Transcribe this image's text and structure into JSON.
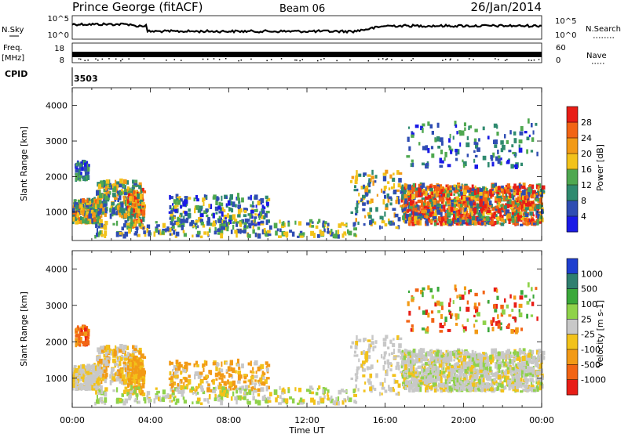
{
  "header": {
    "station": "Prince George (fitACF)",
    "beam": "Beam 06",
    "date": "26/Jan/2014"
  },
  "nsky_panel": {
    "left_label": "N.Sky",
    "right_label": "N.Search",
    "left_ticks": [
      "10^5",
      "10^0"
    ],
    "right_ticks": [
      "10^5",
      "10^0"
    ]
  },
  "freq_panel": {
    "left_label": "Freq.",
    "left_unit": "[MHz]",
    "right_label": "Nave",
    "left_ticks": [
      "18",
      "8"
    ],
    "right_ticks": [
      "60",
      "0"
    ]
  },
  "cpid": {
    "label": "CPID",
    "value": "3503"
  },
  "chart_data": [
    {
      "type": "heatmap",
      "name": "power",
      "ylabel": "Slant Range [km]",
      "y_ticks": [
        "1000",
        "2000",
        "3000",
        "4000"
      ],
      "ylim": [
        200,
        4500
      ],
      "colorbar": {
        "label": "Power [dB]",
        "ticks": [
          "4",
          "8",
          "12",
          "16",
          "20",
          "24",
          "28"
        ],
        "colors": [
          "#1a1ae6",
          "#2f4db3",
          "#2f8a6f",
          "#4fa850",
          "#f2c21a",
          "#f29a16",
          "#f26414",
          "#e81d16"
        ]
      }
    },
    {
      "type": "heatmap",
      "name": "velocity",
      "ylabel": "Slant Range [km]",
      "y_ticks": [
        "1000",
        "2000",
        "3000",
        "4000"
      ],
      "ylim": [
        200,
        4500
      ],
      "xlabel": "Time UT",
      "x_ticks": [
        "00:00",
        "04:00",
        "08:00",
        "12:00",
        "16:00",
        "20:00",
        "00:00"
      ],
      "colorbar": {
        "label": "Velocity [m s-1]",
        "ticks": [
          "1000",
          "500",
          "100",
          "25",
          "-25",
          "-100",
          "-500",
          "-1000"
        ],
        "colors": [
          "#1f3fcf",
          "#2f7f6f",
          "#3aa83a",
          "#8fd24a",
          "#c8c8c8",
          "#f2c21a",
          "#f29a16",
          "#f26414",
          "#e81d16"
        ]
      }
    }
  ]
}
